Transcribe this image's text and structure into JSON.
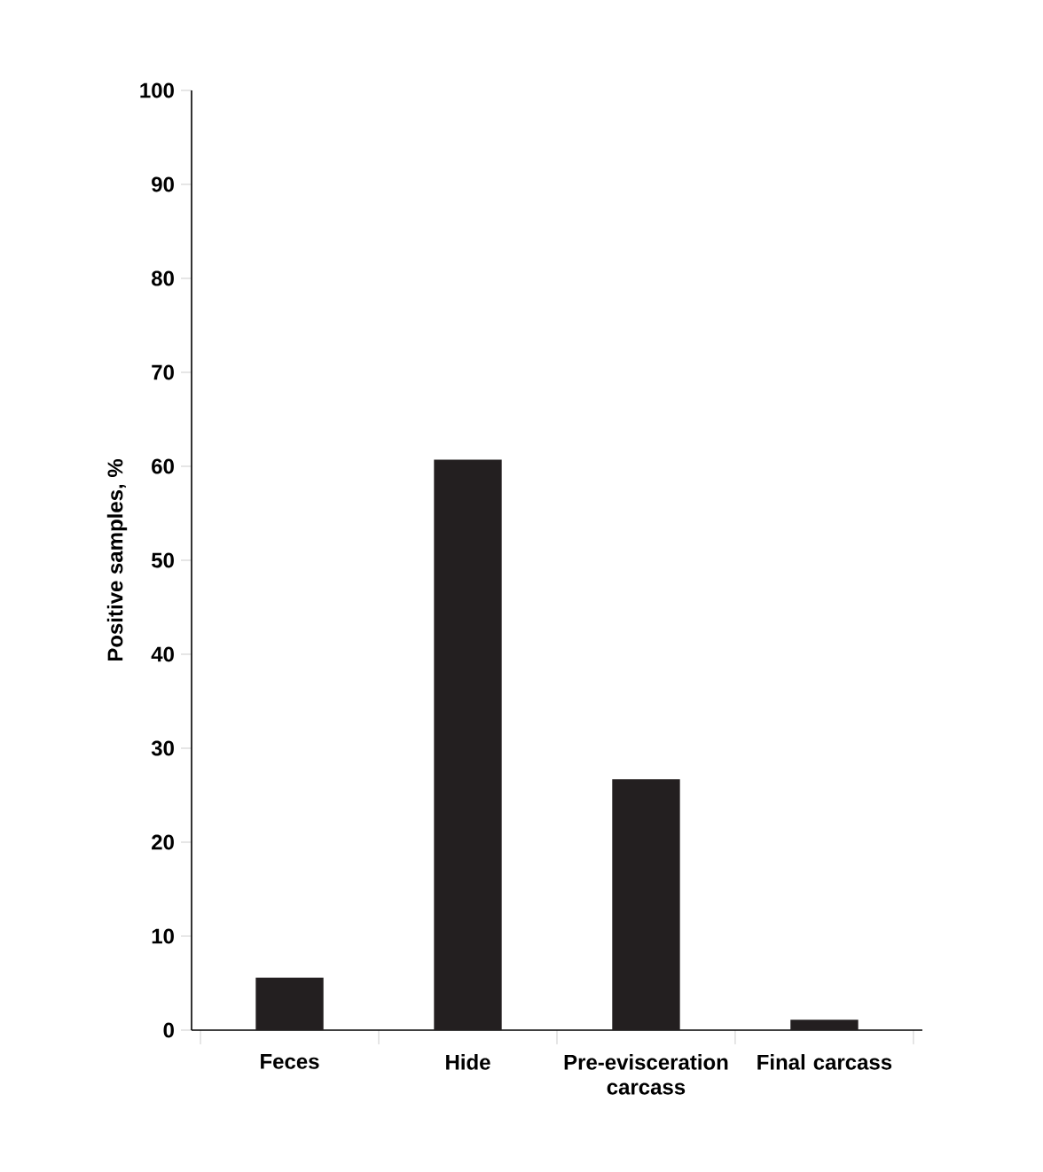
{
  "chart_data": {
    "type": "bar",
    "ylabel": "Positive samples, %",
    "categories": [
      "Feces",
      "Hide",
      "Pre-evisceration carcass",
      "Final carcass"
    ],
    "values": [
      5.6,
      60.7,
      26.7,
      1.1
    ],
    "color": "#231f20",
    "ylim": [
      0,
      100
    ],
    "yticks": [
      0,
      10,
      20,
      30,
      40,
      50,
      60,
      70,
      80,
      90,
      100
    ],
    "grid": false
  }
}
